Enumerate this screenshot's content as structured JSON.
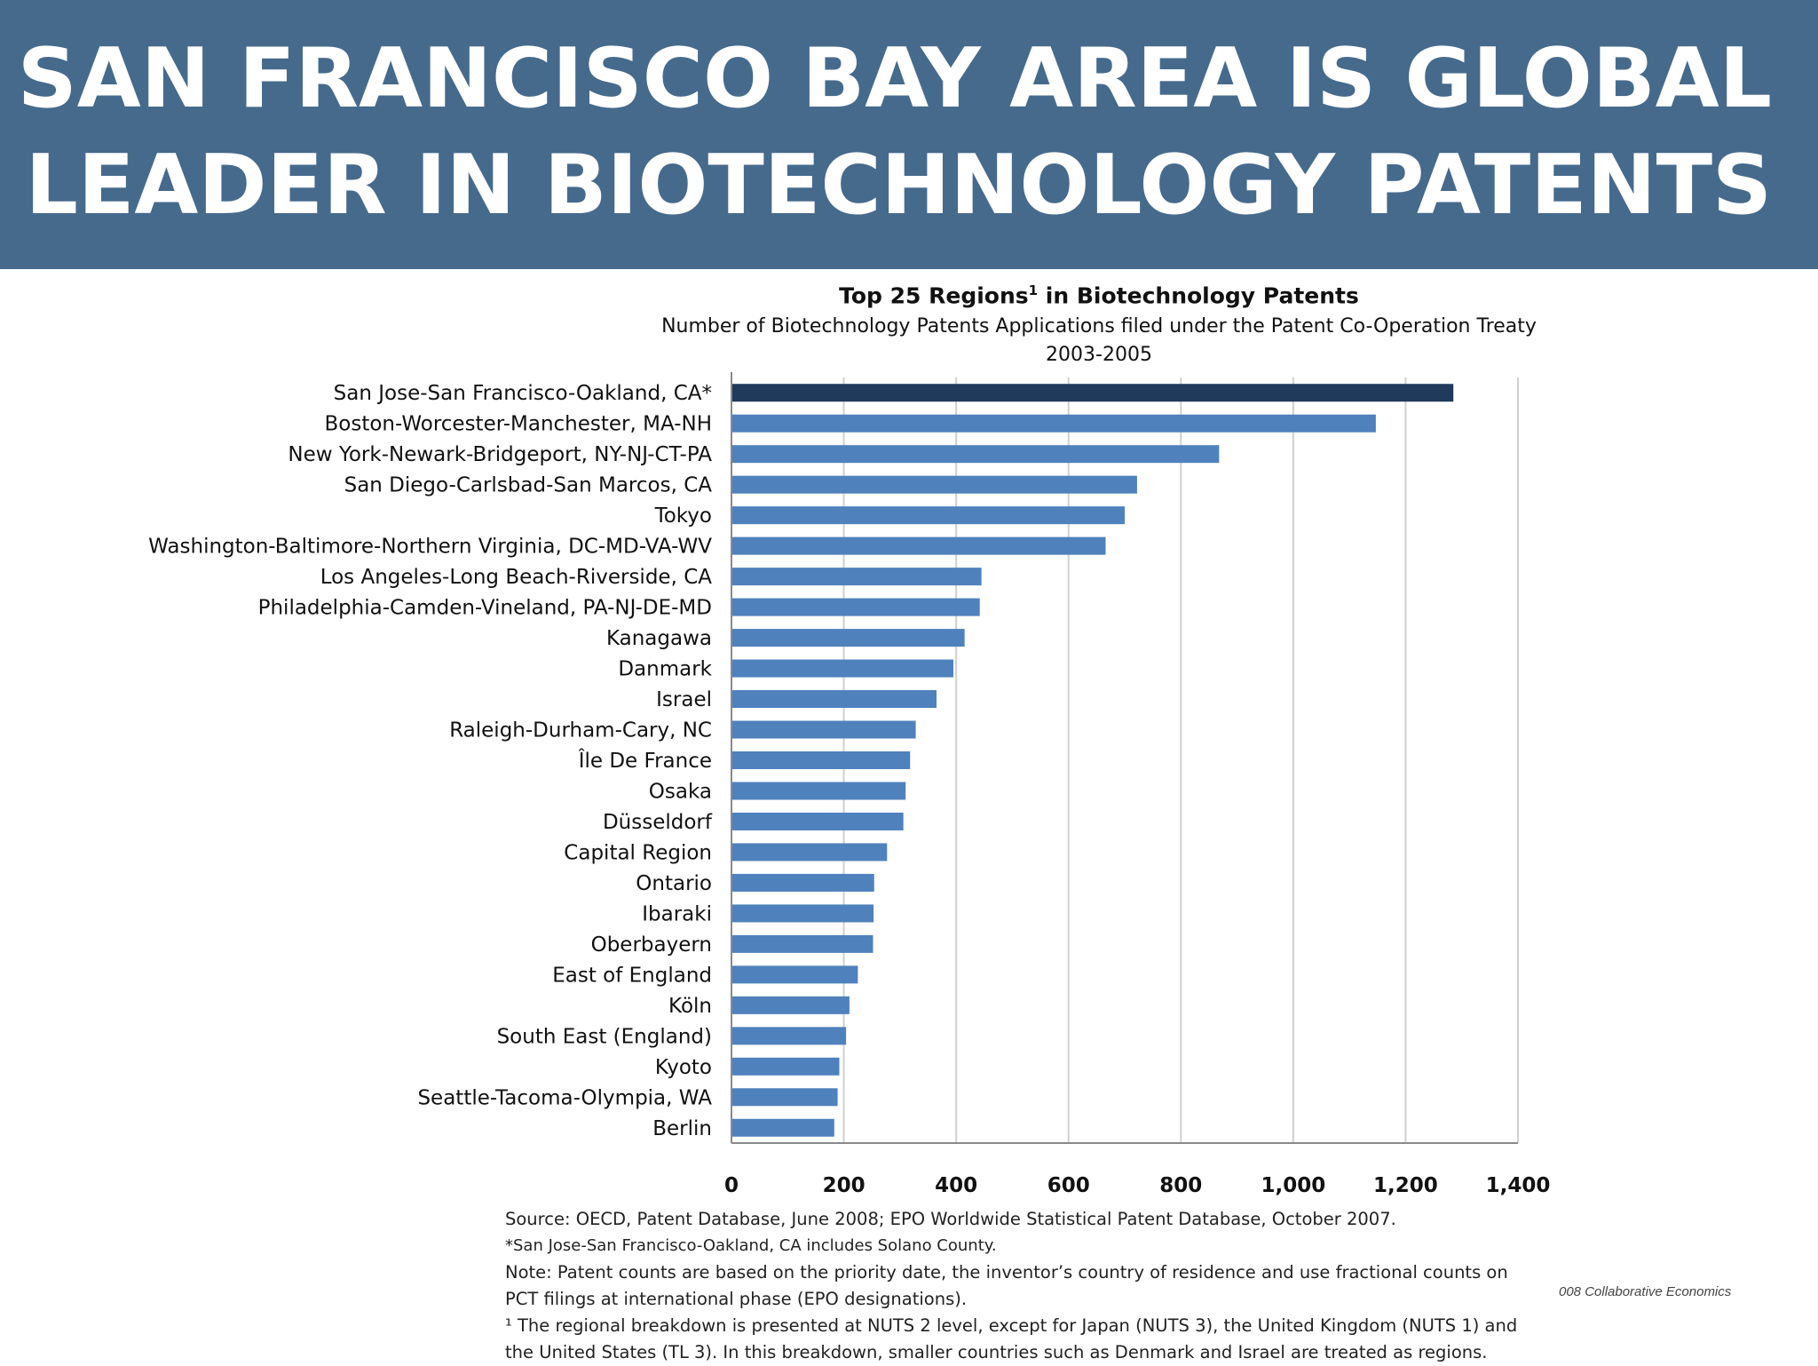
{
  "header": {
    "title_line_1": "SAN FRANCISCO BAY AREA IS GLOBAL",
    "title_line_2": "LEADER IN BIOTECHNOLOGY PATENTS",
    "background_color": "#466a8c"
  },
  "chart_data": {
    "type": "bar",
    "orientation": "horizontal",
    "title": "Top 25 Regions",
    "title_superscript": "1",
    "title_suffix": "in Biotechnology Patents",
    "subtitle": "Number of Biotechnology Patents Applications filed under the Patent Co-Operation Treaty",
    "period": "2003-2005",
    "categories": [
      "San Jose-San Francisco-Oakland, CA*",
      "Boston-Worcester-Manchester, MA-NH",
      "New York-Newark-Bridgeport, NY-NJ-CT-PA",
      "San Diego-Carlsbad-San Marcos, CA",
      "Tokyo",
      "Washington-Baltimore-Northern Virginia, DC-MD-VA-WV",
      "Los Angeles-Long Beach-Riverside, CA",
      "Philadelphia-Camden-Vineland, PA-NJ-DE-MD",
      "Kanagawa",
      "Danmark",
      "Israel",
      "Raleigh-Durham-Cary, NC",
      "Île De France",
      "Osaka",
      "Düsseldorf",
      "Capital Region",
      "Ontario",
      "Ibaraki",
      "Oberbayern",
      "East of England",
      "Köln",
      "South East (England)",
      "Kyoto",
      "Seattle-Tacoma-Olympia, WA",
      "Berlin"
    ],
    "values": [
      1285,
      1147,
      868,
      722,
      700,
      666,
      445,
      442,
      415,
      395,
      365,
      328,
      318,
      310,
      306,
      277,
      254,
      253,
      252,
      225,
      210,
      204,
      192,
      189,
      183
    ],
    "highlight_index": 0,
    "bar_color": "#4f81bd",
    "highlight_color": "#1f3a5a",
    "xlim": [
      0,
      1400
    ],
    "xticks": [
      0,
      200,
      400,
      600,
      800,
      1000,
      1200,
      1400
    ],
    "xtick_labels": [
      "0",
      "200",
      "400",
      "600",
      "800",
      "1,000",
      "1,200",
      "1,400"
    ],
    "grid": "vertical"
  },
  "notes": {
    "source": "Source: OECD, Patent Database, June 2008; EPO Worldwide Statistical  Patent Database, October 2007.",
    "asterisk": "*San Jose-San Francisco-Oakland, CA includes Solano County.",
    "note_line_1": "Note: Patent counts are based on the priority date, the inventor’s country of residence and use fractional counts on",
    "note_line_2": "PCT filings at international phase (EPO designations).",
    "footnote_line_1": "¹ The regional breakdown is presented at NUTS 2 level, except for Japan (NUTS 3), the United Kingdom (NUTS 1) and",
    "footnote_line_2": "the United States (TL 3).  In this breakdown, smaller countries such as Denmark and Israel are treated as regions."
  },
  "credit": "008 Collaborative Economics"
}
